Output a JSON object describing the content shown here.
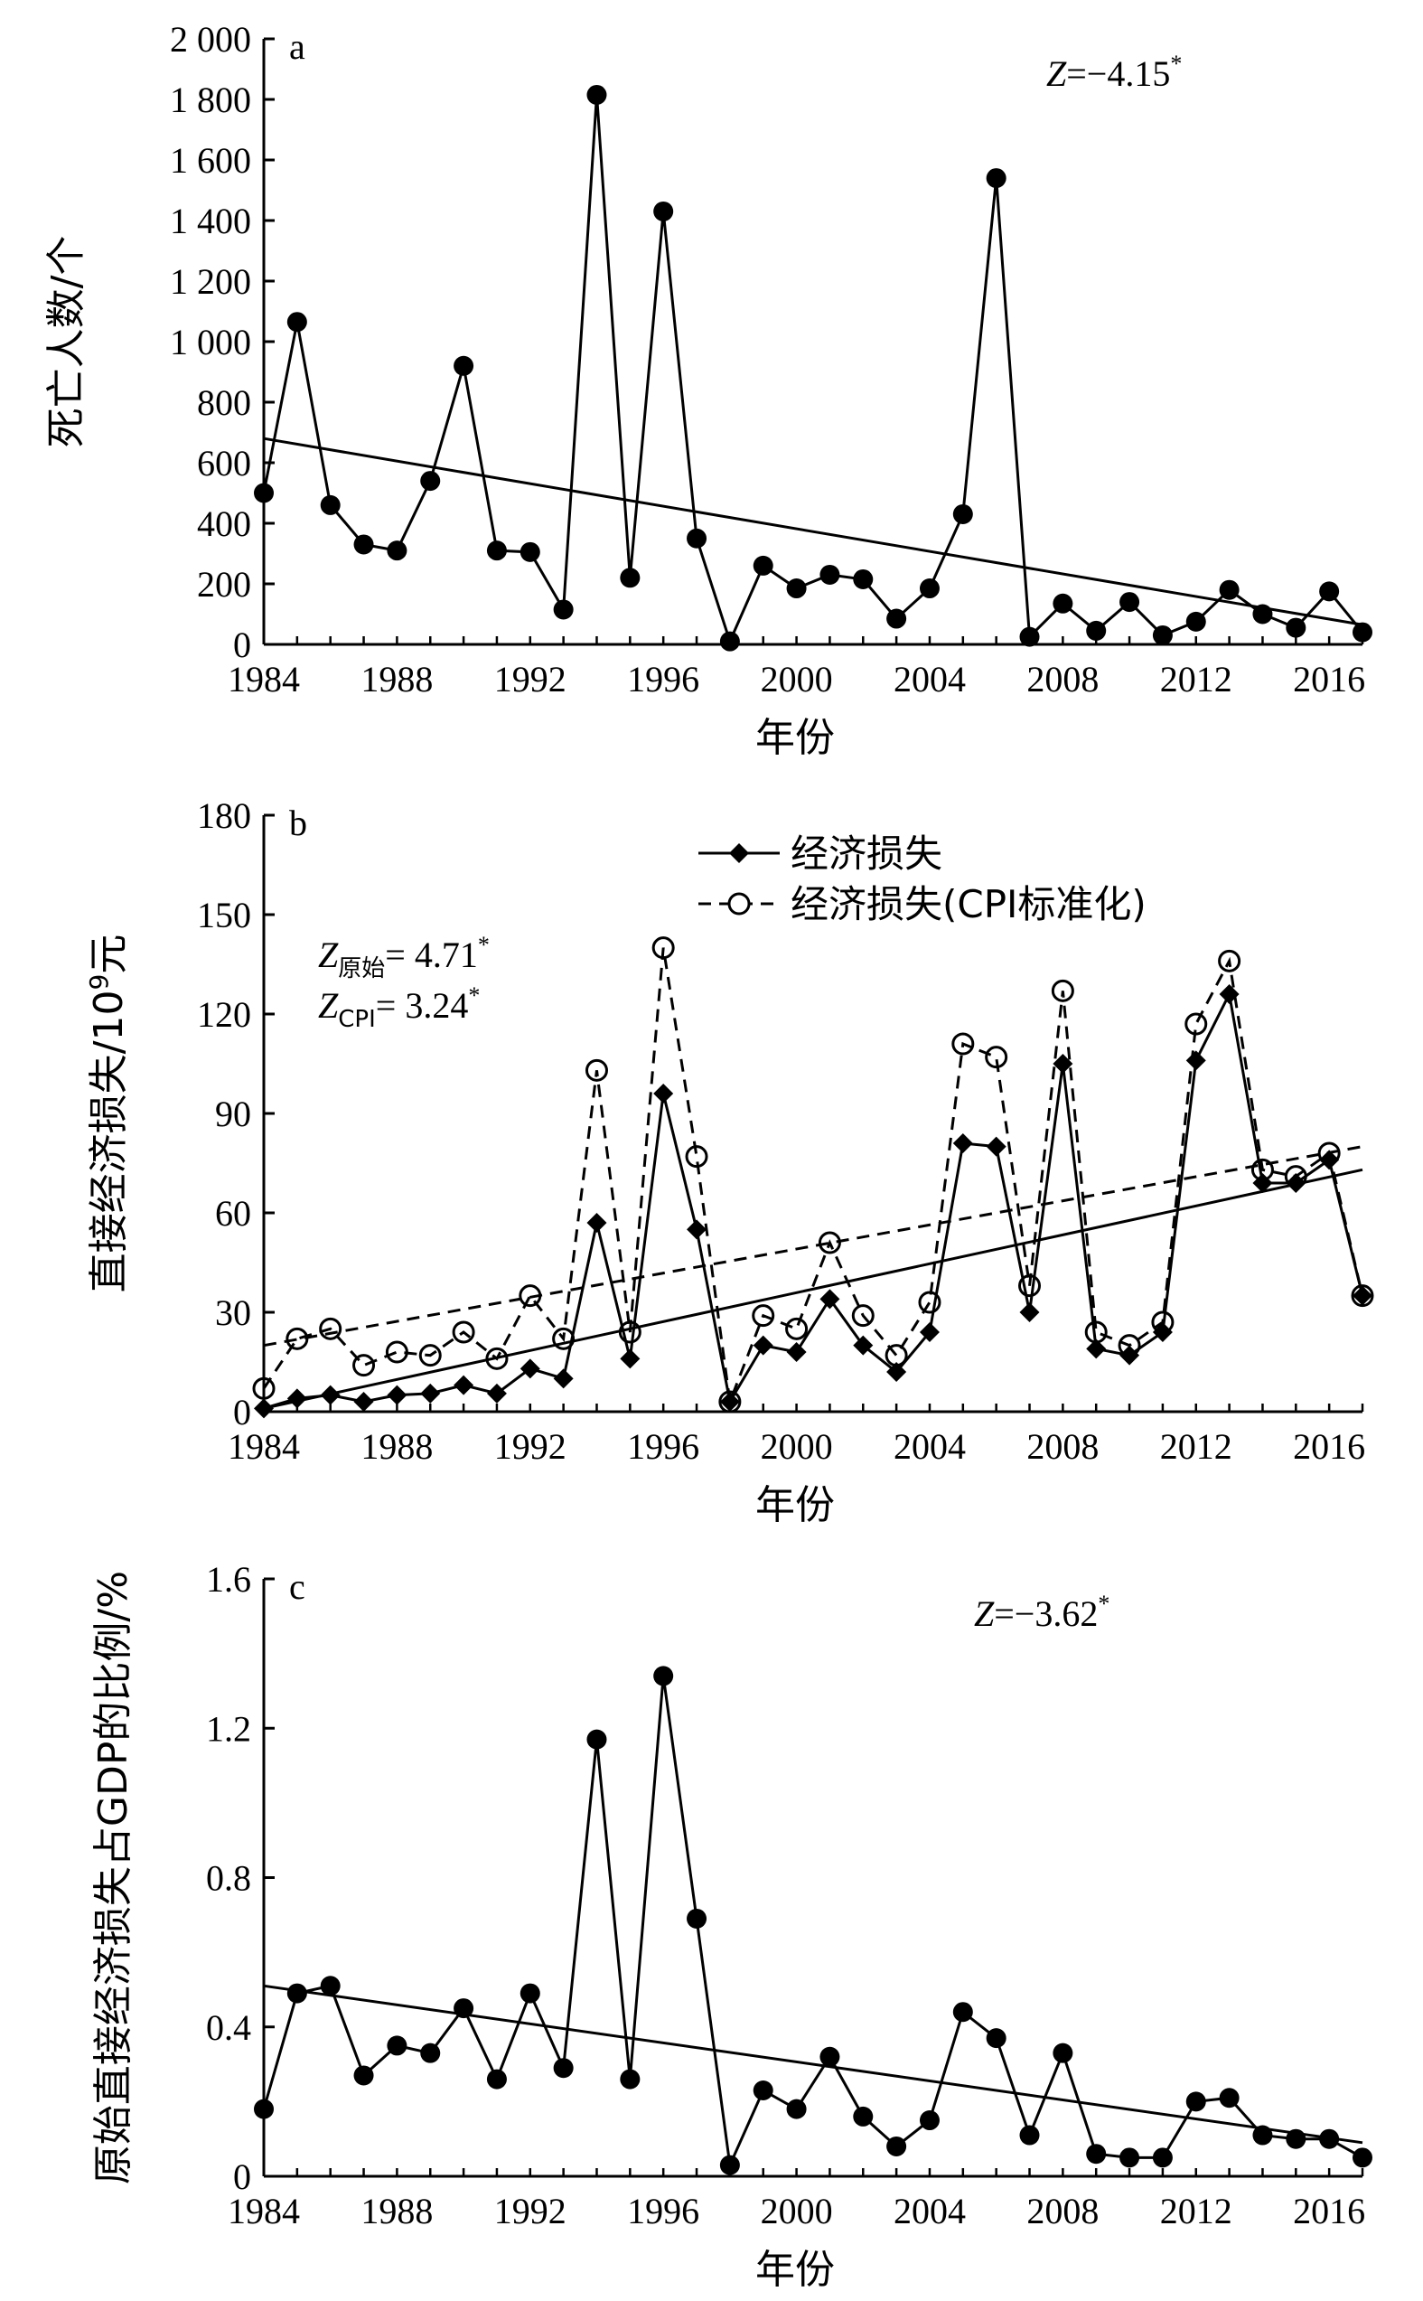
{
  "chart_data": [
    {
      "panel": "a",
      "type": "line",
      "ylabel": "死亡人数/个",
      "xlabel": "年份",
      "xlim": [
        1984,
        2017
      ],
      "ylim": [
        0,
        2000
      ],
      "x_ticks": [
        "1984",
        "1988",
        "1992",
        "1996",
        "2000",
        "2004",
        "2008",
        "2012",
        "2016"
      ],
      "y_ticks": [
        "0",
        "200",
        "400",
        "600",
        "800",
        "1 000",
        "1 200",
        "1 400",
        "1 600",
        "1 800",
        "2 000"
      ],
      "stat": {
        "var": "Z",
        "text": "=−4.15",
        "sup": "*"
      },
      "x": [
        1984,
        1985,
        1986,
        1987,
        1988,
        1989,
        1990,
        1991,
        1992,
        1993,
        1994,
        1995,
        1996,
        1997,
        1998,
        1999,
        2000,
        2001,
        2002,
        2003,
        2004,
        2005,
        2006,
        2007,
        2008,
        2009,
        2010,
        2011,
        2012,
        2013,
        2014,
        2015,
        2016,
        2017
      ],
      "series": [
        {
          "values": [
            500,
            1065,
            460,
            330,
            310,
            540,
            920,
            310,
            305,
            115,
            1815,
            220,
            1430,
            350,
            10,
            260,
            185,
            230,
            215,
            85,
            185,
            430,
            1540,
            25,
            135,
            45,
            140,
            30,
            75,
            180,
            100,
            55,
            175,
            40
          ]
        }
      ],
      "trend": {
        "x": [
          1984,
          2017
        ],
        "y": [
          680,
          65
        ]
      }
    },
    {
      "panel": "b",
      "type": "line",
      "ylabel_main": "直接经济损失/10",
      "ylabel_sup": "9",
      "ylabel_end": "元",
      "xlabel": "年份",
      "xlim": [
        1984,
        2017
      ],
      "ylim": [
        0,
        180
      ],
      "x_ticks": [
        "1984",
        "1988",
        "1992",
        "1996",
        "2000",
        "2004",
        "2008",
        "2012",
        "2016"
      ],
      "y_ticks": [
        "0",
        "30",
        "60",
        "90",
        "120",
        "150",
        "180"
      ],
      "stats": [
        {
          "var": "Z",
          "sub": "原始",
          "text": "= 4.71",
          "sup": "*"
        },
        {
          "var": "Z",
          "sub": "CPI",
          "text": "= 3.24",
          "sup": "*"
        }
      ],
      "x": [
        1984,
        1985,
        1986,
        1987,
        1988,
        1989,
        1990,
        1991,
        1992,
        1993,
        1994,
        1995,
        1996,
        1997,
        1998,
        1999,
        2000,
        2001,
        2002,
        2003,
        2004,
        2005,
        2006,
        2007,
        2008,
        2009,
        2010,
        2011,
        2012,
        2013,
        2014,
        2015,
        2016,
        2017
      ],
      "series": [
        {
          "name": "经济损失",
          "marker": "diamond",
          "dash": "solid",
          "values": [
            1,
            4,
            5,
            3,
            5,
            5.5,
            8,
            5.5,
            13,
            10,
            57,
            16,
            96,
            55,
            3,
            20,
            18,
            34,
            20,
            12,
            24,
            81,
            80,
            30,
            105,
            19,
            17,
            24,
            106,
            126,
            69,
            69,
            76,
            35
          ]
        },
        {
          "name": "经济损失(CPI标准化)",
          "marker": "circle-open",
          "dash": "dashed",
          "values": [
            7,
            22,
            25,
            14,
            18,
            17,
            24,
            16,
            35,
            22,
            103,
            24,
            140,
            77,
            3,
            29,
            25,
            51,
            29,
            17,
            33,
            111,
            107,
            38,
            127,
            24,
            20,
            27,
            117,
            136,
            73,
            71,
            78,
            35
          ]
        }
      ],
      "trends": [
        {
          "series": "经济损失",
          "x": [
            1984,
            2017
          ],
          "y": [
            1,
            73
          ],
          "dash": "solid"
        },
        {
          "series": "经济损失(CPI标准化)",
          "x": [
            1984,
            2017
          ],
          "y": [
            20,
            80
          ],
          "dash": "dashed"
        }
      ],
      "legend": "top-center"
    },
    {
      "panel": "c",
      "type": "line",
      "ylabel": "原始直接经济损失占GDP的比例/%",
      "xlabel": "年份",
      "xlim": [
        1984,
        2017
      ],
      "ylim": [
        0,
        1.6
      ],
      "x_ticks": [
        "1984",
        "1988",
        "1992",
        "1996",
        "2000",
        "2004",
        "2008",
        "2012",
        "2016"
      ],
      "y_ticks": [
        "0",
        "0.4",
        "0.8",
        "1.2",
        "1.6"
      ],
      "stat": {
        "var": "Z",
        "text": "=−3.62",
        "sup": "*"
      },
      "x": [
        1984,
        1985,
        1986,
        1987,
        1988,
        1989,
        1990,
        1991,
        1992,
        1993,
        1994,
        1995,
        1996,
        1997,
        1998,
        1999,
        2000,
        2001,
        2002,
        2003,
        2004,
        2005,
        2006,
        2007,
        2008,
        2009,
        2010,
        2011,
        2012,
        2013,
        2014,
        2015,
        2016,
        2017
      ],
      "series": [
        {
          "values": [
            0.18,
            0.49,
            0.51,
            0.27,
            0.35,
            0.33,
            0.45,
            0.26,
            0.49,
            0.29,
            1.17,
            0.26,
            1.34,
            0.69,
            0.03,
            0.23,
            0.18,
            0.32,
            0.16,
            0.08,
            0.15,
            0.44,
            0.37,
            0.11,
            0.33,
            0.06,
            0.05,
            0.05,
            0.2,
            0.21,
            0.11,
            0.1,
            0.1,
            0.05
          ]
        }
      ],
      "trend": {
        "x": [
          1984,
          2017
        ],
        "y": [
          0.51,
          0.09
        ]
      }
    }
  ]
}
